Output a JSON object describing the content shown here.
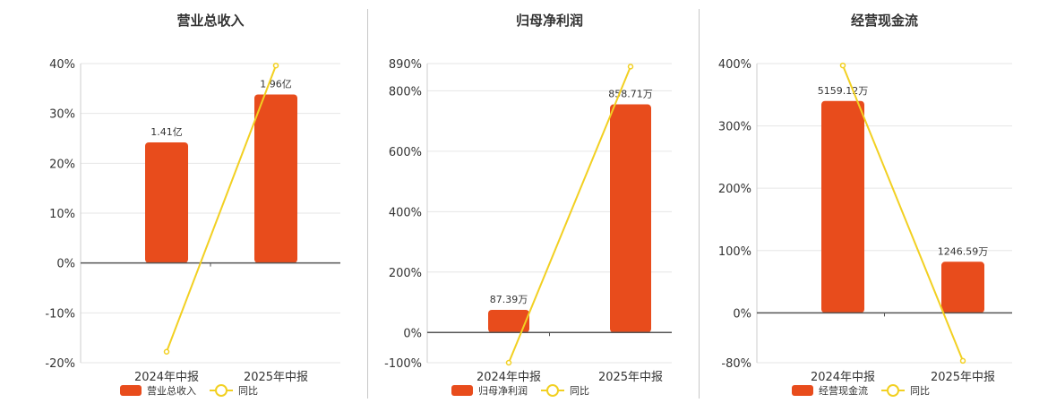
{
  "colors": {
    "bar": "#e84c1c",
    "line": "#f2d022",
    "axis": "#555555",
    "grid": "#e6e6e6"
  },
  "chart_data": [
    {
      "type": "bar+line",
      "title": "营业总收入",
      "categories": [
        "2024年中报",
        "2025年中报"
      ],
      "series": [
        {
          "name": "营业总收入",
          "type": "bar",
          "labels": [
            "1.41亿",
            "1.96亿"
          ],
          "values": [
            24.2,
            33.8
          ]
        },
        {
          "name": "同比",
          "type": "line",
          "values": [
            -17.8,
            39.6
          ]
        }
      ],
      "yticks": [
        "40%",
        "30%",
        "20%",
        "10%",
        "0%",
        "-10%",
        "-20%"
      ],
      "ylim": [
        -20,
        40
      ]
    },
    {
      "type": "bar+line",
      "title": "归母净利润",
      "categories": [
        "2024年中报",
        "2025年中报"
      ],
      "series": [
        {
          "name": "归母净利润",
          "type": "bar",
          "labels": [
            "87.39万",
            "858.71万"
          ],
          "values": [
            75,
            755
          ]
        },
        {
          "name": "同比",
          "type": "line",
          "values": [
            -100,
            880
          ]
        }
      ],
      "yticks": [
        "890%",
        "800%",
        "600%",
        "400%",
        "200%",
        "0%",
        "-100%"
      ],
      "ytick_values": [
        890,
        800,
        600,
        400,
        200,
        0,
        -100
      ],
      "ylim": [
        -100,
        890
      ]
    },
    {
      "type": "bar+line",
      "title": "经营现金流",
      "categories": [
        "2024年中报",
        "2025年中报"
      ],
      "series": [
        {
          "name": "经营现金流",
          "type": "bar",
          "labels": [
            "5159.12万",
            "1246.59万"
          ],
          "values": [
            340,
            82
          ]
        },
        {
          "name": "同比",
          "type": "line",
          "values": [
            397,
            -77
          ]
        }
      ],
      "yticks": [
        "400%",
        "300%",
        "200%",
        "100%",
        "0%",
        "-80%"
      ],
      "ytick_values": [
        400,
        300,
        200,
        100,
        0,
        -80
      ],
      "ylim": [
        -80,
        400
      ]
    }
  ]
}
